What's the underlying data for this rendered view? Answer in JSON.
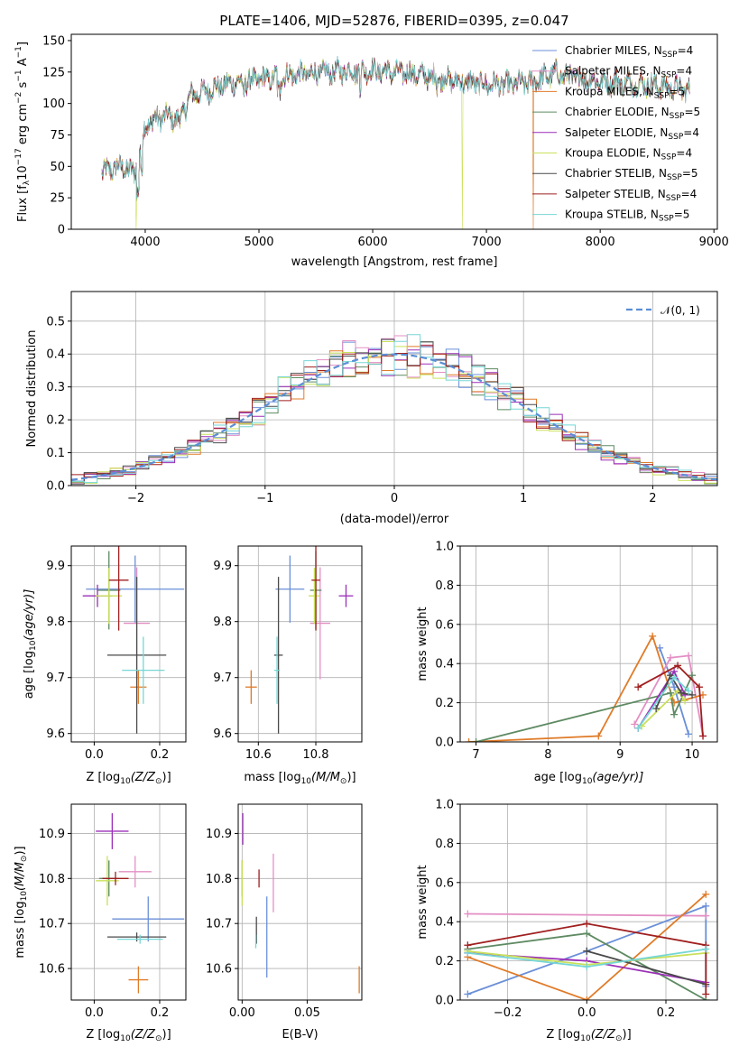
{
  "figure_title": "PLATE=1406, MJD=52876, FIBERID=0395, z=0.047",
  "colors": {
    "Chabrier MILES": "#6a8fd8",
    "Salpeter MILES": "#e38fc4",
    "Kroupa MILES": "#e07b28",
    "Chabrier ELODIE": "#5e8a62",
    "Salpeter ELODIE": "#9b2fb8",
    "Kroupa ELODIE": "#c9e05a",
    "Chabrier STELIB": "#4a4a4a",
    "Salpeter STELIB": "#a01f1f",
    "Kroupa STELIB": "#76d6d6",
    "normal": "#5b8ed6"
  },
  "chart_data": [
    {
      "id": "spectrum",
      "type": "line",
      "title": "PLATE=1406, MJD=52876, FIBERID=0395, z=0.047",
      "xlabel": "wavelength [Angstrom, rest frame]",
      "ylabel_main": "Flux [f",
      "ylabel_sub": "λ",
      "ylabel_rest": "10",
      "ylabel_sup1": "−17",
      "ylabel_tail": " erg cm",
      "ylabel_sup2": "−2",
      "ylabel_tail2": " s",
      "ylabel_sup3": "−1",
      "ylabel_tail3": " A",
      "ylabel_sup4": "−1",
      "ylabel_end": "]",
      "xlim": [
        3350,
        9030
      ],
      "ylim": [
        0,
        155
      ],
      "xticks": [
        4000,
        5000,
        6000,
        7000,
        8000,
        9000
      ],
      "yticks": [
        0,
        25,
        50,
        75,
        100,
        125,
        150
      ],
      "continuum": [
        [
          3620,
          45
        ],
        [
          3700,
          48
        ],
        [
          3800,
          50
        ],
        [
          3900,
          44
        ],
        [
          4000,
          82
        ],
        [
          4100,
          88
        ],
        [
          4200,
          90
        ],
        [
          4300,
          86
        ],
        [
          4400,
          106
        ],
        [
          4600,
          112
        ],
        [
          4800,
          117
        ],
        [
          5000,
          119
        ],
        [
          5200,
          122
        ],
        [
          5500,
          124
        ],
        [
          5800,
          126
        ],
        [
          6000,
          126
        ],
        [
          6200,
          125
        ],
        [
          6400,
          123
        ],
        [
          6600,
          120
        ],
        [
          6800,
          117
        ],
        [
          7000,
          115
        ],
        [
          7200,
          115
        ],
        [
          7400,
          117
        ],
        [
          7600,
          124
        ],
        [
          7800,
          120
        ],
        [
          8000,
          118
        ],
        [
          8200,
          116
        ],
        [
          8400,
          115
        ],
        [
          8600,
          113
        ],
        [
          8800,
          110
        ]
      ],
      "legend": [
        {
          "name": "Chabrier MILES",
          "nssp": "4"
        },
        {
          "name": "Salpeter MILES",
          "nssp": "4"
        },
        {
          "name": "Kroupa MILES",
          "nssp": "5"
        },
        {
          "name": "Chabrier ELODIE",
          "nssp": "5"
        },
        {
          "name": "Salpeter ELODIE",
          "nssp": "4"
        },
        {
          "name": "Kroupa ELODIE",
          "nssp": "4"
        },
        {
          "name": "Chabrier STELIB",
          "nssp": "5"
        },
        {
          "name": "Salpeter STELIB",
          "nssp": "4"
        },
        {
          "name": "Kroupa STELIB",
          "nssp": "5"
        }
      ],
      "legend_label_prefix": ", N",
      "legend_label_sub": "SSP",
      "legend_label_eq": "=",
      "legend_placement": "top-right",
      "dropouts": [
        {
          "series": "Kroupa ELODIE",
          "x": 3920
        },
        {
          "series": "Kroupa ELODIE",
          "x": 6790
        },
        {
          "series": "Kroupa MILES",
          "x": 7410
        }
      ]
    },
    {
      "id": "residuals",
      "type": "histogram",
      "xlabel": "(data-model)/error",
      "ylabel": "Normed distribution",
      "xlim": [
        -2.5,
        2.5
      ],
      "ylim": [
        0,
        0.59
      ],
      "xticks": [
        -2,
        -1,
        0,
        1,
        2
      ],
      "xticklabels": [
        "−2",
        "−1",
        "0",
        "1",
        "2"
      ],
      "yticks": [
        0,
        0.1,
        0.2,
        0.3,
        0.4,
        0.5
      ],
      "yticklabels": [
        "0.0",
        "0.1",
        "0.2",
        "0.3",
        "0.4",
        "0.5"
      ],
      "legend": "𝒩(0, 1)",
      "legend_placement": "top-right",
      "bin_width": 0.1,
      "grid": true
    },
    {
      "id": "z-age",
      "type": "errorbar",
      "xlabel_pre": "Z [log",
      "xlabel_sub": "10",
      "xlabel_post": "(Z/Z",
      "xlabel_sub2": "⊙",
      "xlabel_end": ")]",
      "ylabel_pre": "age  [log",
      "ylabel_sub": "10",
      "ylabel_post": "(age/yr)]",
      "xlim": [
        -0.07,
        0.28
      ],
      "ylim": [
        9.585,
        9.935
      ],
      "xticks": [
        0.0,
        0.2
      ],
      "xticklabels": [
        "0.0",
        "0.2"
      ],
      "yticks": [
        9.6,
        9.7,
        9.8,
        9.9
      ],
      "points": [
        {
          "series": "Chabrier MILES",
          "x": 0.125,
          "y": 9.858,
          "xerr": 0.15,
          "yerr": 0.06
        },
        {
          "series": "Salpeter MILES",
          "x": 0.13,
          "y": 9.797,
          "xerr": 0.04,
          "yerr": 0.1
        },
        {
          "series": "Kroupa MILES",
          "x": 0.135,
          "y": 9.683,
          "xerr": 0.025,
          "yerr": 0.03
        },
        {
          "series": "Chabrier ELODIE",
          "x": 0.045,
          "y": 9.856,
          "xerr": 0.035,
          "yerr": 0.07
        },
        {
          "series": "Salpeter ELODIE",
          "x": 0.01,
          "y": 9.846,
          "xerr": 0.045,
          "yerr": 0.02
        },
        {
          "series": "Kroupa ELODIE",
          "x": 0.045,
          "y": 9.846,
          "xerr": 0.04,
          "yerr": 0.05
        },
        {
          "series": "Chabrier STELIB",
          "x": 0.13,
          "y": 9.74,
          "xerr": 0.09,
          "yerr": 0.14
        },
        {
          "series": "Salpeter STELIB",
          "x": 0.075,
          "y": 9.874,
          "xerr": 0.03,
          "yerr": 0.09
        },
        {
          "series": "Kroupa STELIB",
          "x": 0.15,
          "y": 9.713,
          "xerr": 0.065,
          "yerr": 0.06
        }
      ]
    },
    {
      "id": "mass-age",
      "type": "errorbar",
      "xlabel_pre": "mass [log",
      "xlabel_sub": "10",
      "xlabel_post": "(M/M",
      "xlabel_sub2": "⊙",
      "xlabel_end": ")]",
      "xlim": [
        10.53,
        10.96
      ],
      "ylim": [
        9.585,
        9.935
      ],
      "xticks": [
        10.6,
        10.8
      ],
      "xticklabels": [
        "10.6",
        "10.8"
      ],
      "yticks": [
        9.6,
        9.7,
        9.8,
        9.9
      ],
      "points": [
        {
          "series": "Chabrier MILES",
          "x": 10.71,
          "y": 9.858,
          "xerr": 0.05,
          "yerr": 0.06
        },
        {
          "series": "Salpeter MILES",
          "x": 10.815,
          "y": 9.797,
          "xerr": 0.035,
          "yerr": 0.1
        },
        {
          "series": "Kroupa MILES",
          "x": 10.575,
          "y": 9.683,
          "xerr": 0.02,
          "yerr": 0.03
        },
        {
          "series": "Chabrier ELODIE",
          "x": 10.8,
          "y": 9.856,
          "xerr": 0.02,
          "yerr": 0.07
        },
        {
          "series": "Salpeter ELODIE",
          "x": 10.905,
          "y": 9.846,
          "xerr": 0.025,
          "yerr": 0.02
        },
        {
          "series": "Kroupa ELODIE",
          "x": 10.795,
          "y": 9.846,
          "xerr": 0.02,
          "yerr": 0.05
        },
        {
          "series": "Chabrier STELIB",
          "x": 10.67,
          "y": 9.74,
          "xerr": 0.015,
          "yerr": 0.14
        },
        {
          "series": "Salpeter STELIB",
          "x": 10.8,
          "y": 9.874,
          "xerr": 0.015,
          "yerr": 0.09
        },
        {
          "series": "Kroupa STELIB",
          "x": 10.665,
          "y": 9.713,
          "xerr": 0.01,
          "yerr": 0.06
        }
      ]
    },
    {
      "id": "weights-age",
      "type": "line",
      "xlabel_pre": "age  [log",
      "xlabel_sub": "10",
      "xlabel_post": "(age/yr)]",
      "ylabel": "mass weight",
      "xlim": [
        6.78,
        10.35
      ],
      "ylim": [
        0,
        1.0
      ],
      "xticks": [
        7,
        8,
        9,
        10
      ],
      "yticks": [
        0,
        0.2,
        0.4,
        0.6,
        0.8,
        1.0
      ],
      "yticklabels": [
        "0.0",
        "0.2",
        "0.4",
        "0.6",
        "0.8",
        "1.0"
      ],
      "series": [
        {
          "name": "Chabrier MILES",
          "x": [
            9.55,
            9.75,
            9.95
          ],
          "y": [
            0.48,
            0.28,
            0.04
          ]
        },
        {
          "name": "Salpeter MILES",
          "x": [
            9.2,
            9.7,
            9.95,
            10.15
          ],
          "y": [
            0.09,
            0.43,
            0.44,
            0.03
          ]
        },
        {
          "name": "Kroupa MILES",
          "x": [
            6.9,
            8.7,
            9.45,
            9.75,
            10.15
          ],
          "y": [
            0.0,
            0.03,
            0.54,
            0.2,
            0.24
          ]
        },
        {
          "name": "Chabrier ELODIE",
          "x": [
            7.0,
            9.7,
            9.75,
            10.0
          ],
          "y": [
            0.0,
            0.25,
            0.14,
            0.34
          ]
        },
        {
          "name": "Salpeter ELODIE",
          "x": [
            9.25,
            9.75,
            9.9
          ],
          "y": [
            0.07,
            0.36,
            0.24
          ]
        },
        {
          "name": "Kroupa ELODIE",
          "x": [
            9.3,
            9.8,
            9.9
          ],
          "y": [
            0.08,
            0.26,
            0.21
          ]
        },
        {
          "name": "Chabrier STELIB",
          "x": [
            9.5,
            9.7,
            9.85,
            10.0
          ],
          "y": [
            0.17,
            0.34,
            0.25,
            0.24
          ]
        },
        {
          "name": "Salpeter STELIB",
          "x": [
            9.25,
            9.8,
            10.1,
            10.15
          ],
          "y": [
            0.28,
            0.39,
            0.28,
            0.03
          ]
        },
        {
          "name": "Kroupa STELIB",
          "x": [
            9.25,
            9.75,
            9.95
          ],
          "y": [
            0.07,
            0.33,
            0.26
          ]
        }
      ]
    },
    {
      "id": "z-mass",
      "type": "errorbar",
      "xlabel_pre": "Z [log",
      "xlabel_sub": "10",
      "xlabel_post": "(Z/Z",
      "xlabel_sub2": "⊙",
      "xlabel_end": ")]",
      "ylabel_pre": "mass [log",
      "ylabel_sub": "10",
      "ylabel_post": "(M/M",
      "ylabel_sub2": "⊙",
      "ylabel_end": ")]",
      "xlim": [
        -0.07,
        0.28
      ],
      "ylim": [
        10.53,
        10.965
      ],
      "xticks": [
        0.0,
        0.2
      ],
      "xticklabels": [
        "0.0",
        "0.2"
      ],
      "yticks": [
        10.6,
        10.7,
        10.8,
        10.9
      ],
      "points": [
        {
          "series": "Chabrier MILES",
          "x": 0.165,
          "y": 10.71,
          "xerr": 0.11,
          "yerr": 0.05
        },
        {
          "series": "Salpeter MILES",
          "x": 0.125,
          "y": 10.815,
          "xerr": 0.05,
          "yerr": 0.035
        },
        {
          "series": "Kroupa MILES",
          "x": 0.135,
          "y": 10.575,
          "xerr": 0.03,
          "yerr": 0.03
        },
        {
          "series": "Chabrier ELODIE",
          "x": 0.045,
          "y": 10.8,
          "xerr": 0.03,
          "yerr": 0.04
        },
        {
          "series": "Salpeter ELODIE",
          "x": 0.055,
          "y": 10.905,
          "xerr": 0.05,
          "yerr": 0.04
        },
        {
          "series": "Kroupa ELODIE",
          "x": 0.04,
          "y": 10.795,
          "xerr": 0.035,
          "yerr": 0.055
        },
        {
          "series": "Chabrier STELIB",
          "x": 0.13,
          "y": 10.67,
          "xerr": 0.09,
          "yerr": 0.01
        },
        {
          "series": "Salpeter STELIB",
          "x": 0.065,
          "y": 10.8,
          "xerr": 0.04,
          "yerr": 0.015
        },
        {
          "series": "Kroupa STELIB",
          "x": 0.14,
          "y": 10.665,
          "xerr": 0.07,
          "yerr": 0.01
        }
      ]
    },
    {
      "id": "ebv-mass",
      "type": "errorbar",
      "xlabel": "E(B-V)",
      "xlim": [
        -0.003,
        0.092
      ],
      "ylim": [
        10.53,
        10.965
      ],
      "xticks": [
        0.0,
        0.05
      ],
      "xticklabels": [
        "0.00",
        "0.05"
      ],
      "yticks": [
        10.6,
        10.7,
        10.8,
        10.9
      ],
      "points": [
        {
          "series": "Chabrier MILES",
          "x": 0.019,
          "y": 10.67,
          "xerr": 0,
          "yerr": 0.09
        },
        {
          "series": "Salpeter MILES",
          "x": 0.024,
          "y": 10.79,
          "xerr": 0,
          "yerr": 0.065
        },
        {
          "series": "Kroupa MILES",
          "x": 0.09,
          "y": 10.575,
          "xerr": 0,
          "yerr": 0.03
        },
        {
          "series": "Chabrier ELODIE",
          "x": 0.0,
          "y": 10.8,
          "xerr": 0,
          "yerr": 0.04
        },
        {
          "series": "Salpeter ELODIE",
          "x": 0.0005,
          "y": 10.91,
          "xerr": 0,
          "yerr": 0.035
        },
        {
          "series": "Kroupa ELODIE",
          "x": 0.0,
          "y": 10.79,
          "xerr": 0,
          "yerr": 0.05
        },
        {
          "series": "Chabrier STELIB",
          "x": 0.011,
          "y": 10.685,
          "xerr": 0,
          "yerr": 0.03
        },
        {
          "series": "Salpeter STELIB",
          "x": 0.013,
          "y": 10.8,
          "xerr": 0,
          "yerr": 0.02
        },
        {
          "series": "Kroupa STELIB",
          "x": 0.0105,
          "y": 10.66,
          "xerr": 0,
          "yerr": 0.015
        }
      ]
    },
    {
      "id": "weights-z",
      "type": "line",
      "xlabel_pre": "Z [log",
      "xlabel_sub": "10",
      "xlabel_post": "(Z/Z",
      "xlabel_sub2": "⊙",
      "xlabel_end": ")]",
      "ylabel": "mass weight",
      "xlim": [
        -0.32,
        0.33
      ],
      "ylim": [
        0,
        1.0
      ],
      "xticks": [
        -0.2,
        0.0,
        0.2
      ],
      "xticklabels": [
        "−0.2",
        "0.0",
        "0.2"
      ],
      "yticks": [
        0,
        0.2,
        0.4,
        0.6,
        0.8,
        1.0
      ],
      "yticklabels": [
        "0.0",
        "0.2",
        "0.4",
        "0.6",
        "0.8",
        "1.0"
      ],
      "series": [
        {
          "name": "Chabrier MILES",
          "x": [
            -0.301,
            0.0,
            0.301,
            0.301
          ],
          "y": [
            0.03,
            0.25,
            0.48,
            0.07
          ]
        },
        {
          "name": "Salpeter MILES",
          "x": [
            -0.301,
            0.301
          ],
          "y": [
            0.44,
            0.43
          ]
        },
        {
          "name": "Kroupa MILES",
          "x": [
            -0.301,
            0.0,
            0.301
          ],
          "y": [
            0.22,
            0.0,
            0.54
          ]
        },
        {
          "name": "Chabrier ELODIE",
          "x": [
            -0.301,
            0.0,
            0.301
          ],
          "y": [
            0.26,
            0.34,
            0.0
          ]
        },
        {
          "name": "Salpeter ELODIE",
          "x": [
            -0.301,
            0.0,
            0.301
          ],
          "y": [
            0.24,
            0.2,
            0.09
          ]
        },
        {
          "name": "Kroupa ELODIE",
          "x": [
            -0.301,
            0.0,
            0.301
          ],
          "y": [
            0.25,
            0.18,
            0.24
          ]
        },
        {
          "name": "Chabrier STELIB",
          "x": [
            0.0,
            0.301
          ],
          "y": [
            0.25,
            0.08
          ]
        },
        {
          "name": "Salpeter STELIB",
          "x": [
            -0.301,
            0.0,
            0.301,
            0.301
          ],
          "y": [
            0.28,
            0.39,
            0.28,
            0.03
          ]
        },
        {
          "name": "Kroupa STELIB",
          "x": [
            -0.301,
            0.0,
            0.301
          ],
          "y": [
            0.24,
            0.17,
            0.26
          ]
        }
      ]
    }
  ]
}
